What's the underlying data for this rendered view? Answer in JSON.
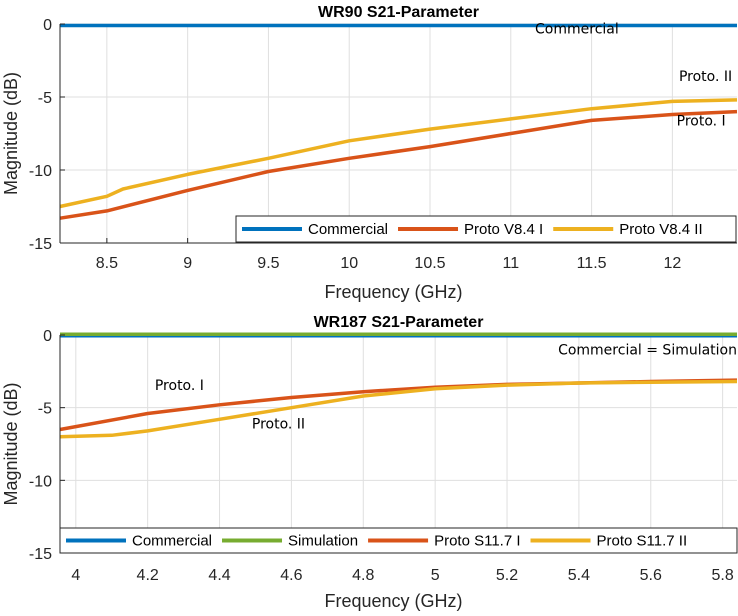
{
  "chart_data": [
    {
      "type": "line",
      "title": "WR90 S21-Parameter",
      "xlabel": "Frequency (GHz)",
      "ylabel": "Magnitude (dB)",
      "xlim": [
        8.21,
        12.4
      ],
      "ylim": [
        -15,
        0
      ],
      "xticks": [
        "8.5",
        "9",
        "9.5",
        "10",
        "10.5",
        "11",
        "11.5",
        "12"
      ],
      "xtick_values": [
        8.5,
        9,
        9.5,
        10,
        10.5,
        11,
        11.5,
        12
      ],
      "yticks": [
        "0",
        "-5",
        "-10",
        "-15"
      ],
      "ytick_values": [
        0,
        -5,
        -10,
        -15
      ],
      "grid": true,
      "legend_placement": "bottom-right",
      "series": [
        {
          "name": "Commercial",
          "color": "#0072BD",
          "x": [
            8.21,
            12.4
          ],
          "y": [
            -0.1,
            -0.1
          ]
        },
        {
          "name": "Proto V8.4 I",
          "color": "#D95319",
          "x": [
            8.21,
            8.5,
            9,
            9.5,
            10,
            10.5,
            11,
            11.5,
            12,
            12.4
          ],
          "y": [
            -13.3,
            -12.8,
            -11.4,
            -10.1,
            -9.2,
            -8.4,
            -7.5,
            -6.6,
            -6.2,
            -6.0
          ]
        },
        {
          "name": "Proto V8.4 II",
          "color": "#EDB120",
          "x": [
            8.21,
            8.5,
            8.6,
            9,
            9.5,
            10,
            10.5,
            11,
            11.5,
            12,
            12.4
          ],
          "y": [
            -12.5,
            -11.8,
            -11.3,
            -10.3,
            -9.2,
            -8.0,
            -7.2,
            -6.5,
            -5.8,
            -5.3,
            -5.2
          ]
        }
      ],
      "annotations": [
        "Commercial",
        "Proto. II",
        "Proto. I"
      ]
    },
    {
      "type": "line",
      "title": "WR187 S21-Parameter",
      "xlabel": "Frequency (GHz)",
      "ylabel": "Magnitude (dB)",
      "xlim": [
        3.956,
        5.84
      ],
      "ylim": [
        -15,
        0
      ],
      "xticks": [
        "4",
        "4.2",
        "4.4",
        "4.6",
        "4.8",
        "5",
        "5.2",
        "5.4",
        "5.6",
        "5.8"
      ],
      "xtick_values": [
        4,
        4.2,
        4.4,
        4.6,
        4.8,
        5,
        5.2,
        5.4,
        5.6,
        5.8
      ],
      "yticks": [
        "0",
        "-5",
        "-10",
        "-15"
      ],
      "ytick_values": [
        0,
        -5,
        -10,
        -15
      ],
      "grid": true,
      "legend_placement": "bottom",
      "series": [
        {
          "name": "Commercial",
          "color": "#0072BD",
          "x": [
            3.956,
            5.84
          ],
          "y": [
            -0.1,
            -0.1
          ]
        },
        {
          "name": "Simulation",
          "color": "#77AC30",
          "x": [
            3.956,
            5.84
          ],
          "y": [
            0.05,
            0.05
          ]
        },
        {
          "name": "Proto S11.7 I",
          "color": "#D95319",
          "x": [
            3.956,
            4.2,
            4.4,
            4.6,
            4.8,
            5,
            5.2,
            5.4,
            5.6,
            5.84
          ],
          "y": [
            -6.5,
            -5.4,
            -4.8,
            -4.3,
            -3.9,
            -3.6,
            -3.4,
            -3.3,
            -3.2,
            -3.1
          ]
        },
        {
          "name": "Proto S11.7 II",
          "color": "#EDB120",
          "x": [
            3.956,
            4.1,
            4.2,
            4.4,
            4.6,
            4.8,
            5,
            5.2,
            5.4,
            5.6,
            5.84
          ],
          "y": [
            -7.0,
            -6.9,
            -6.6,
            -5.8,
            -5.0,
            -4.2,
            -3.7,
            -3.45,
            -3.3,
            -3.25,
            -3.2
          ]
        }
      ],
      "annotations": [
        "Commercial = Simulation",
        "Proto. I",
        "Proto. II"
      ]
    }
  ]
}
